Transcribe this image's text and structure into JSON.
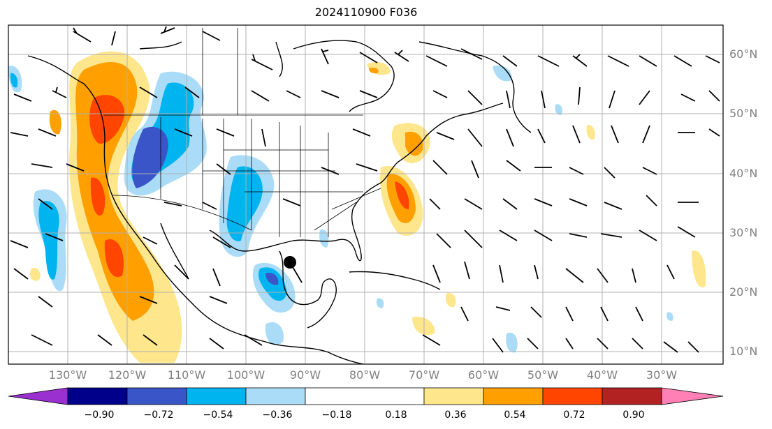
{
  "title": "2024110900 F036",
  "lon_labels": [
    "130°W",
    "120°W",
    "110°W",
    "100°W",
    "90°W",
    "80°W",
    "70°W",
    "60°W",
    "50°W",
    "40°W",
    "30°W"
  ],
  "lat_labels": [
    "60°N",
    "50°N",
    "40°N",
    "30°N",
    "20°N",
    "10°N"
  ],
  "colorbar": {
    "ticks": [
      "−0.90",
      "−0.72",
      "−0.54",
      "−0.36",
      "−0.18",
      "0.18",
      "0.36",
      "0.54",
      "0.72",
      "0.90"
    ],
    "colors": {
      "under": "#9b30d0",
      "c1": "#00008b",
      "c2": "#3a55c8",
      "c3": "#00b4f0",
      "c4": "#aadcf8",
      "c5": "#ffffff",
      "c6": "#fee68c",
      "c7": "#ffa000",
      "c8": "#ff4500",
      "c9": "#b22222",
      "over": "#ff80b4"
    }
  }
}
